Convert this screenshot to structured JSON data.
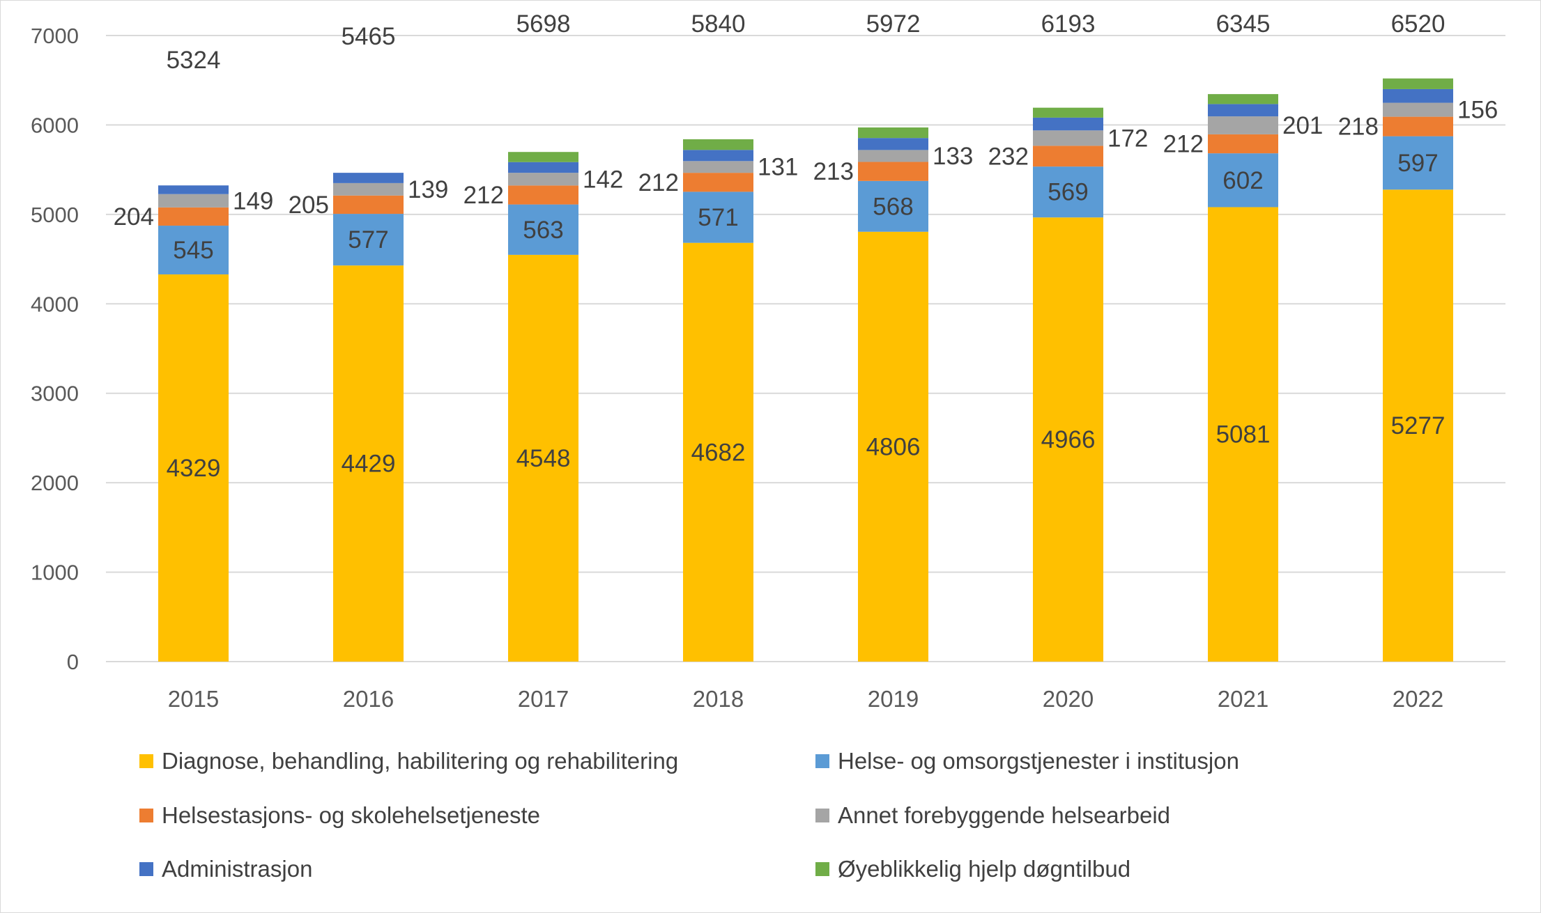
{
  "chart_data": {
    "type": "bar",
    "stacked": true,
    "categories": [
      "2015",
      "2016",
      "2017",
      "2018",
      "2019",
      "2020",
      "2021",
      "2022"
    ],
    "ylim": [
      0,
      7000
    ],
    "yticks": [
      0,
      1000,
      2000,
      3000,
      4000,
      5000,
      6000,
      7000
    ],
    "grid": true,
    "legend_position": "bottom",
    "series": [
      {
        "name": "Diagnose, behandling, habilitering og rehabilitering",
        "color": "#FFC000",
        "labeled": true,
        "values": [
          4329,
          4429,
          4548,
          4682,
          4806,
          4966,
          5081,
          5277
        ]
      },
      {
        "name": "Helse- og omsorgstjenester i institusjon",
        "color": "#5B9BD5",
        "labeled": true,
        "values": [
          545,
          577,
          563,
          571,
          568,
          569,
          602,
          597
        ]
      },
      {
        "name": "Helsestasjons- og skolehelsetjeneste",
        "color": "#ED7D31",
        "labeled": true,
        "values": [
          204,
          205,
          212,
          212,
          213,
          232,
          212,
          218
        ]
      },
      {
        "name": "Annet forebyggende helsearbeid",
        "color": "#A5A5A5",
        "labeled": true,
        "values": [
          149,
          139,
          142,
          131,
          133,
          172,
          201,
          156
        ]
      },
      {
        "name": "Administrasjon",
        "color": "#4472C4",
        "labeled": false,
        "values": [
          97,
          115,
          120,
          125,
          134,
          143,
          138,
          153
        ]
      },
      {
        "name": "Øyeblikkelig hjelp døgntilbud",
        "color": "#70AD47",
        "labeled": false,
        "values": [
          0,
          0,
          113,
          119,
          118,
          111,
          111,
          119
        ]
      }
    ],
    "totals": [
      5324,
      5465,
      5698,
      5840,
      5972,
      6193,
      6345,
      6520
    ]
  }
}
